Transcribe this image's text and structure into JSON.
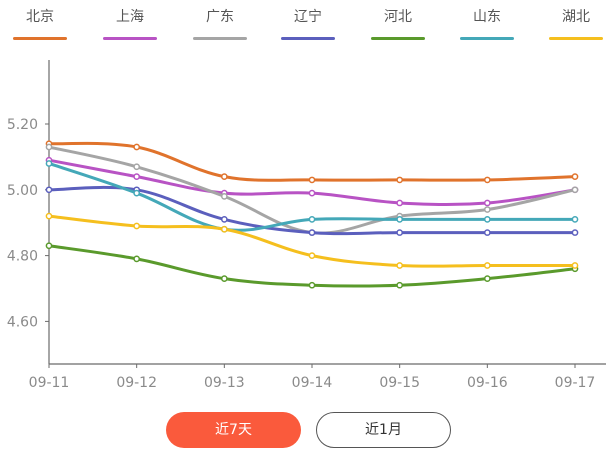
{
  "legend": [
    {
      "label": "北京",
      "color": "#e0732c"
    },
    {
      "label": "上海",
      "color": "#b853c4"
    },
    {
      "label": "广东",
      "color": "#a5a5a5"
    },
    {
      "label": "辽宁",
      "color": "#5b5fbd"
    },
    {
      "label": "河北",
      "color": "#5a9a2c"
    },
    {
      "label": "山东",
      "color": "#44a8b8"
    },
    {
      "label": "湖北",
      "color": "#f5bf1e"
    }
  ],
  "buttons": {
    "seven_days": "近7天",
    "one_month": "近1月",
    "active_color": "#fa5a3c"
  },
  "chart_data": {
    "type": "line",
    "title": "",
    "xlabel": "",
    "ylabel": "",
    "x": [
      "09-11",
      "09-12",
      "09-13",
      "09-14",
      "09-15",
      "09-16",
      "09-17"
    ],
    "yticks": [
      "4.60",
      "4.80",
      "5.00",
      "5.20"
    ],
    "ylim": [
      4.47,
      5.38
    ],
    "grid": false,
    "legend_position": "top",
    "series": [
      {
        "name": "北京",
        "color": "#e0732c",
        "values": [
          5.14,
          5.13,
          5.04,
          5.03,
          5.03,
          5.03,
          5.04
        ]
      },
      {
        "name": "上海",
        "color": "#b853c4",
        "values": [
          5.09,
          5.04,
          4.99,
          4.99,
          4.96,
          4.96,
          5.0
        ]
      },
      {
        "name": "广东",
        "color": "#a5a5a5",
        "values": [
          5.13,
          5.07,
          4.98,
          4.87,
          4.92,
          4.94,
          5.0
        ]
      },
      {
        "name": "辽宁",
        "color": "#5b5fbd",
        "values": [
          5.0,
          5.0,
          4.91,
          4.87,
          4.87,
          4.87,
          4.87
        ]
      },
      {
        "name": "河北",
        "color": "#5a9a2c",
        "values": [
          4.83,
          4.79,
          4.73,
          4.71,
          4.71,
          4.73,
          4.76
        ]
      },
      {
        "name": "山东",
        "color": "#44a8b8",
        "values": [
          5.08,
          4.99,
          4.88,
          4.91,
          4.91,
          4.91,
          4.91
        ]
      },
      {
        "name": "湖北",
        "color": "#f5bf1e",
        "values": [
          4.92,
          4.89,
          4.88,
          4.8,
          4.77,
          4.77,
          4.77
        ]
      }
    ]
  }
}
